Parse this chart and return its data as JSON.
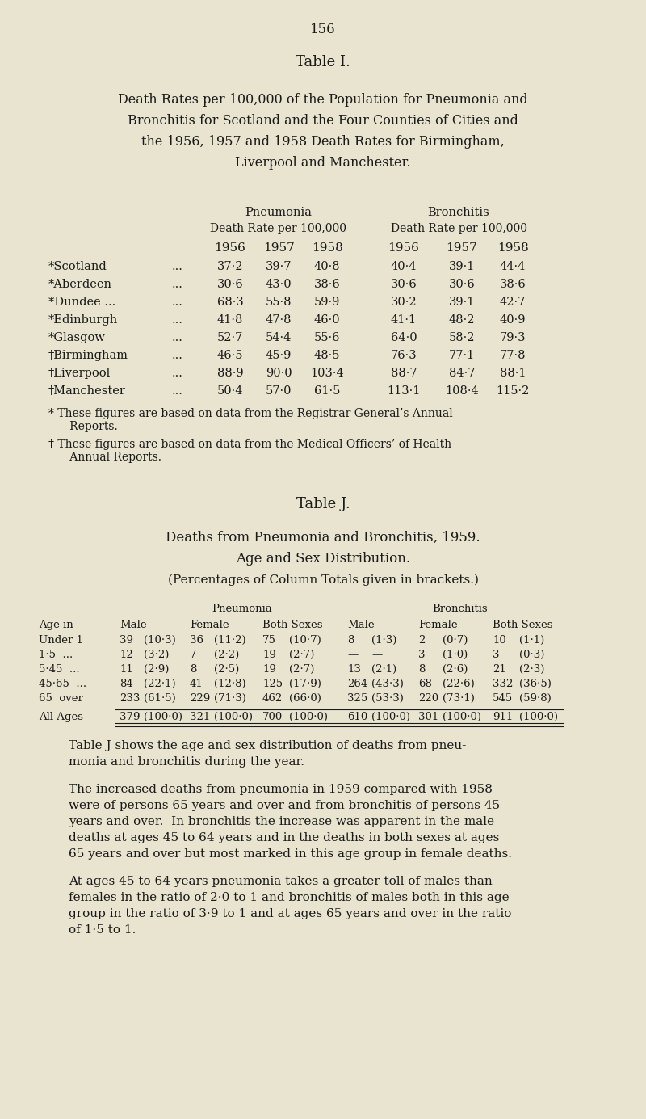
{
  "bg_color": "#e8e4d0",
  "text_color": "#1a1a1a",
  "page_number": "156",
  "table_i_title": "Table I.",
  "table_i_heading_lines": [
    "Death Rates per 100,000 of the Population for Pneumonia and",
    "Bronchitis for Scotland and the Four Counties of Cities and",
    "the 1956, 1957 and 1958 Death Rates for Birmingham,",
    "Liverpool and Manchester."
  ],
  "table_i_years": [
    "1956",
    "1957",
    "1958",
    "1956",
    "1957",
    "1958"
  ],
  "table_i_rows": [
    [
      "*Scotland",
      "...",
      "37·2",
      "39·7",
      "40·8",
      "40·4",
      "39·1",
      "44·4"
    ],
    [
      "*Aberdeen",
      "...",
      "30·6",
      "43·0",
      "38·6",
      "30·6",
      "30·6",
      "38·6"
    ],
    [
      "*Dundee ...",
      "...",
      "68·3",
      "55·8",
      "59·9",
      "30·2",
      "39·1",
      "42·7"
    ],
    [
      "*Edinburgh",
      "...",
      "41·8",
      "47·8",
      "46·0",
      "41·1",
      "48·2",
      "40·9"
    ],
    [
      "*Glasgow",
      "...",
      "52·7",
      "54·4",
      "55·6",
      "64·0",
      "58·2",
      "79·3"
    ],
    [
      "†Birmingham",
      "...",
      "46·5",
      "45·9",
      "48·5",
      "76·3",
      "77·1",
      "77·8"
    ],
    [
      "†Liverpool",
      "...",
      "88·9",
      "90·0",
      "103·4",
      "88·7",
      "84·7",
      "88·1"
    ],
    [
      "†Manchester",
      "...",
      "50·4",
      "57·0",
      "61·5",
      "113·1",
      "108·4",
      "115·2"
    ]
  ],
  "fn1_line1": "* These figures are based on data from the Registrar General’s Annual",
  "fn1_line2": "      Reports.",
  "fn2_line1": "† These figures are based on data from the Medical Officers’ of Health",
  "fn2_line2": "      Annual Reports.",
  "table_j_title": "Table J.",
  "table_j_heading1": "Deaths from Pneumonia and Bronchitis, 1959.",
  "table_j_heading2": "Age and Sex Distribution.",
  "table_j_subheading": "(Percentages of Column Totals given in brackets.)",
  "table_j_rows": [
    [
      "Under 1",
      "39",
      "(10·3)",
      "36",
      "(11·2)",
      "75",
      "(10·7)",
      "8",
      "(1·3)",
      "2",
      "(0·7)",
      "10",
      "(1·1)"
    ],
    [
      "1·5  ...",
      "12",
      "(3·2)",
      "7",
      "(2·2)",
      "19",
      "(2·7)",
      "—",
      "—",
      "3",
      "(1·0)",
      "3",
      "(0·3)"
    ],
    [
      "5·45  ...",
      "11",
      "(2·9)",
      "8",
      "(2·5)",
      "19",
      "(2·7)",
      "13",
      "(2·1)",
      "8",
      "(2·6)",
      "21",
      "(2·3)"
    ],
    [
      "45·65  ...",
      "84",
      "(22·1)",
      "41",
      "(12·8)",
      "125",
      "(17·9)",
      "264",
      "(43·3)",
      "68",
      "(22·6)",
      "332",
      "(36·5)"
    ],
    [
      "65  over",
      "233",
      "(61·5)",
      "229",
      "(71·3)",
      "462",
      "(66·0)",
      "325",
      "(53·3)",
      "220",
      "(73·1)",
      "545",
      "(59·8)"
    ]
  ],
  "table_j_totals": [
    "All Ages",
    "379",
    "(100·0)",
    "321",
    "(100·0)",
    "700",
    "(100·0)",
    "610",
    "(100·0)",
    "301",
    "(100·0)",
    "911",
    "(100·0)"
  ],
  "para1_lines": [
    "Table J shows the age and sex distribution of deaths from pneu-",
    "monia and bronchitis during the year."
  ],
  "para2_lines": [
    "The increased deaths from pneumonia in 1959 compared with 1958",
    "were of persons 65 years and over and from bronchitis of persons 45",
    "years and over.  In bronchitis the increase was apparent in the male",
    "deaths at ages 45 to 64 years and in the deaths in both sexes at ages",
    "65 years and over but most marked in this age group in female deaths."
  ],
  "para3_lines": [
    "At ages 45 to 64 years pneumonia takes a greater toll of males than",
    "females in the ratio of 2·0 to 1 and bronchitis of males both in this age",
    "group in the ratio of 3·9 to 1 and at ages 65 years and over in the ratio",
    "of 1·5 to 1."
  ]
}
